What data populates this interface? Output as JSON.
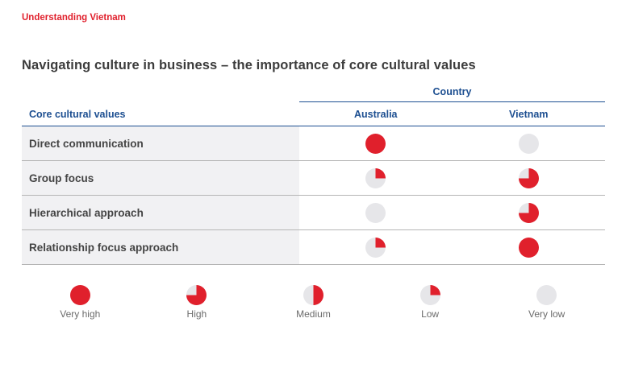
{
  "header": {
    "kicker": "Understanding Vietnam",
    "title": "Navigating culture in business – the importance of core cultural values"
  },
  "table": {
    "group_label": "Country",
    "first_col_label": "Core cultural values",
    "columns": [
      "Australia",
      "Vietnam"
    ],
    "rows": [
      {
        "label": "Direct communication",
        "levels": [
          "Very high",
          "Very low"
        ]
      },
      {
        "label": "Group focus",
        "levels": [
          "Low",
          "High"
        ]
      },
      {
        "label": "Hierarchical approach",
        "levels": [
          "Very low",
          "High"
        ]
      },
      {
        "label": "Relationship focus approach",
        "levels": [
          "Low",
          "Very high"
        ]
      }
    ]
  },
  "legend": [
    {
      "label": "Very high",
      "fraction": 1.0
    },
    {
      "label": "High",
      "fraction": 0.75
    },
    {
      "label": "Medium",
      "fraction": 0.5
    },
    {
      "label": "Low",
      "fraction": 0.25
    },
    {
      "label": "Very low",
      "fraction": 0.0
    }
  ],
  "colors": {
    "accent": "#e0202c",
    "empty": "#e6e6e9",
    "brand": "#1d4f91"
  }
}
